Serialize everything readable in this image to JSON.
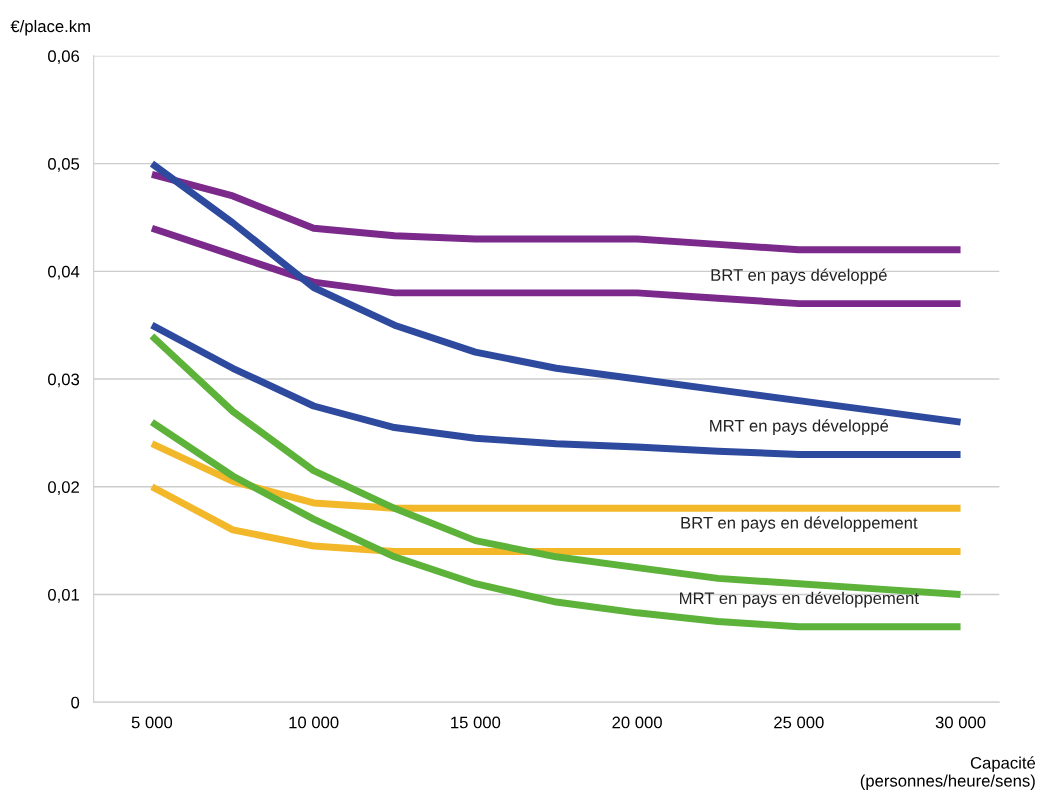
{
  "chart_data": {
    "type": "line",
    "ylabel": "€/place.km",
    "xlabel": "Capacité\n(personnes/heure/sens)",
    "x": [
      5000,
      7500,
      10000,
      12500,
      15000,
      17500,
      20000,
      22500,
      25000,
      27500,
      30000
    ],
    "series": [
      {
        "color": "#7b2a8c",
        "values": [
          0.049,
          0.047,
          0.044,
          0.0433,
          0.043,
          0.043,
          0.043,
          0.0425,
          0.042,
          0.042,
          0.042
        ]
      },
      {
        "name": "BRT en pays développé",
        "color": "#7b2a8c",
        "values": [
          0.044,
          0.0415,
          0.039,
          0.038,
          0.038,
          0.038,
          0.038,
          0.0375,
          0.037,
          0.037,
          0.037
        ]
      },
      {
        "color": "#2e4a9e",
        "values": [
          0.05,
          0.0445,
          0.0385,
          0.035,
          0.0325,
          0.031,
          0.03,
          0.029,
          0.028,
          0.027,
          0.026
        ]
      },
      {
        "name": "MRT en pays développé",
        "color": "#2e4a9e",
        "values": [
          0.035,
          0.031,
          0.0275,
          0.0255,
          0.0245,
          0.024,
          0.0237,
          0.0233,
          0.023,
          0.023,
          0.023
        ]
      },
      {
        "color": "#f2b82a",
        "values": [
          0.024,
          0.0205,
          0.0185,
          0.018,
          0.018,
          0.018,
          0.018,
          0.018,
          0.018,
          0.018,
          0.018
        ]
      },
      {
        "name": "BRT en pays en développement",
        "color": "#f2b82a",
        "values": [
          0.02,
          0.016,
          0.0145,
          0.014,
          0.014,
          0.014,
          0.014,
          0.014,
          0.014,
          0.014,
          0.014
        ]
      },
      {
        "color": "#5db33a",
        "values": [
          0.034,
          0.027,
          0.0215,
          0.018,
          0.015,
          0.0135,
          0.0125,
          0.0115,
          0.011,
          0.0105,
          0.01
        ]
      },
      {
        "name": "MRT en pays en développement",
        "color": "#5db33a",
        "values": [
          0.026,
          0.021,
          0.017,
          0.0135,
          0.011,
          0.0093,
          0.0083,
          0.0075,
          0.007,
          0.007,
          0.007
        ]
      }
    ],
    "xlim": [
      3200,
      31200
    ],
    "xticks": [
      {
        "value": 5000,
        "label": "5 000"
      },
      {
        "value": 10000,
        "label": "10 000"
      },
      {
        "value": 15000,
        "label": "15 000"
      },
      {
        "value": 20000,
        "label": "20 000"
      },
      {
        "value": 25000,
        "label": "25 000"
      },
      {
        "value": 30000,
        "label": "30 000"
      }
    ],
    "ylim": [
      0,
      0.06
    ],
    "yticks": [
      0,
      {
        "value": 0.01,
        "label": "0,01"
      },
      {
        "value": 0.02,
        "label": "0,02"
      },
      {
        "value": 0.03,
        "label": "0,03"
      },
      {
        "value": 0.04,
        "label": "0,04"
      },
      {
        "value": 0.05,
        "label": "0,05"
      },
      {
        "value": 0.06,
        "label": "0,06"
      }
    ],
    "grid": "y",
    "marker": "none",
    "line_style": "solid"
  }
}
